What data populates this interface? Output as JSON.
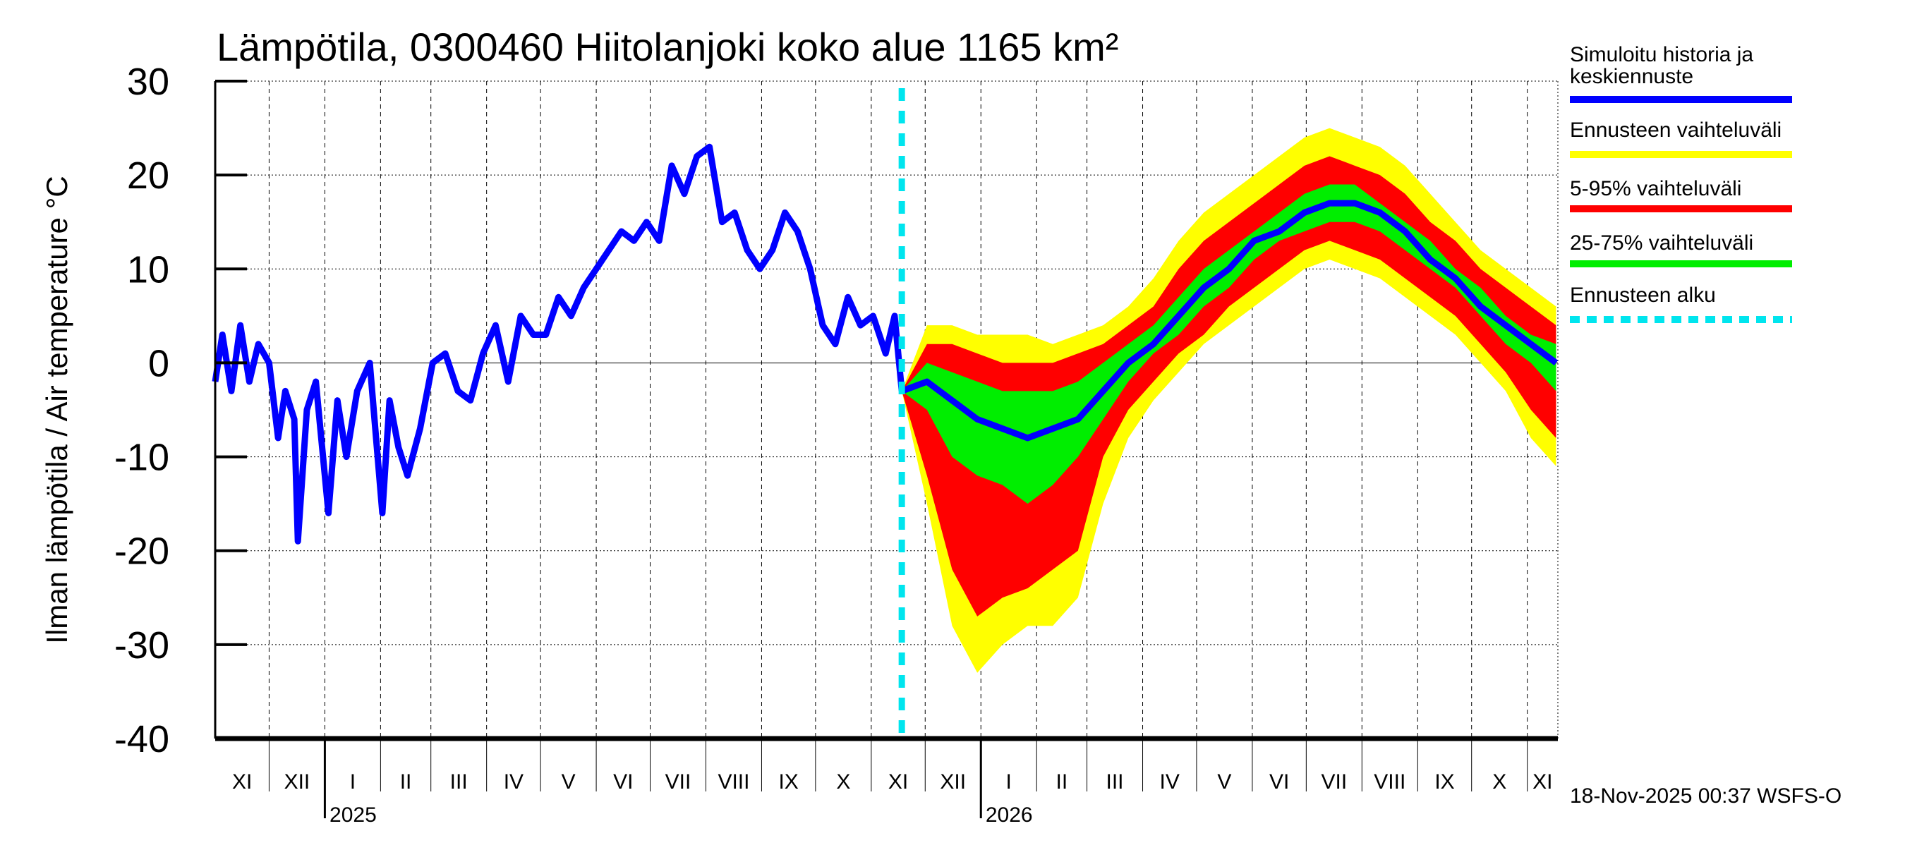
{
  "chart_data": {
    "type": "area",
    "title": "Lämpötila, 0300460 Hiitolanjoki koko alue 1165 km²",
    "ylabel": "Ilman lämpötila / Air temperature   °C",
    "xlabel": "",
    "ylim": [
      -40,
      30
    ],
    "yticks": [
      30,
      20,
      10,
      0,
      -10,
      -20,
      -30,
      -40
    ],
    "xlim": [
      "2024-11-01",
      "2026-11-18"
    ],
    "grid": true,
    "month_labels": [
      "XI",
      "XII",
      "I",
      "II",
      "III",
      "IV",
      "V",
      "VI",
      "VII",
      "VIII",
      "IX",
      "X",
      "XI",
      "XII",
      "I",
      "II",
      "III",
      "IV",
      "V",
      "VI",
      "VII",
      "VIII",
      "IX",
      "X",
      "XI"
    ],
    "year_labels": [
      {
        "year": "2025",
        "date": "2025-01-01"
      },
      {
        "year": "2026",
        "date": "2026-01-01"
      }
    ],
    "forecast_start": "2025-11-18",
    "timestamp": "18-Nov-2025 00:37 WSFS-O",
    "legend": {
      "placement": "right",
      "items": [
        {
          "label": "Simuloitu historia ja keskiennuste",
          "label_lines": [
            "Simuloitu historia ja",
            "keskiennuste"
          ],
          "color": "#0000ff",
          "style": "solid"
        },
        {
          "label": "Ennusteen vaihteluväli",
          "label_lines": [
            "Ennusteen vaihteluväli"
          ],
          "color": "#ffff00",
          "style": "solid"
        },
        {
          "label": "5-95% vaihteluväli",
          "label_lines": [
            "5-95% vaihteluväli"
          ],
          "color": "#ff0000",
          "style": "solid"
        },
        {
          "label": "25-75% vaihteluväli",
          "label_lines": [
            "25-75% vaihteluväli"
          ],
          "color": "#00ee00",
          "style": "solid"
        },
        {
          "label": "Ennusteen alku",
          "label_lines": [
            "Ennusteen alku"
          ],
          "color": "#00e5ee",
          "style": "dashed"
        }
      ]
    },
    "history": {
      "name": "Simuloitu historia",
      "x": [
        "2024-11-01",
        "2024-11-05",
        "2024-11-10",
        "2024-11-15",
        "2024-11-20",
        "2024-11-25",
        "2024-12-01",
        "2024-12-06",
        "2024-12-10",
        "2024-12-15",
        "2024-12-17",
        "2024-12-22",
        "2024-12-27",
        "2025-01-03",
        "2025-01-08",
        "2025-01-13",
        "2025-01-19",
        "2025-01-26",
        "2025-02-02",
        "2025-02-06",
        "2025-02-11",
        "2025-02-16",
        "2025-02-23",
        "2025-03-02",
        "2025-03-09",
        "2025-03-16",
        "2025-03-23",
        "2025-03-30",
        "2025-04-06",
        "2025-04-13",
        "2025-04-20",
        "2025-04-27",
        "2025-05-04",
        "2025-05-11",
        "2025-05-18",
        "2025-05-25",
        "2025-06-01",
        "2025-06-08",
        "2025-06-15",
        "2025-06-22",
        "2025-06-29",
        "2025-07-06",
        "2025-07-13",
        "2025-07-20",
        "2025-07-27",
        "2025-08-03",
        "2025-08-10",
        "2025-08-17",
        "2025-08-24",
        "2025-08-31",
        "2025-09-07",
        "2025-09-14",
        "2025-09-21",
        "2025-09-28",
        "2025-10-05",
        "2025-10-12",
        "2025-10-19",
        "2025-10-26",
        "2025-11-02",
        "2025-11-09",
        "2025-11-14",
        "2025-11-18"
      ],
      "y": [
        -2,
        3,
        -3,
        4,
        -2,
        2,
        0,
        -8,
        -3,
        -6,
        -19,
        -5,
        -2,
        -16,
        -4,
        -10,
        -3,
        0,
        -16,
        -4,
        -9,
        -12,
        -7,
        0,
        1,
        -3,
        -4,
        1,
        4,
        -2,
        5,
        3,
        3,
        7,
        5,
        8,
        10,
        12,
        14,
        13,
        15,
        13,
        21,
        18,
        22,
        23,
        15,
        16,
        12,
        10,
        12,
        16,
        14,
        10,
        4,
        2,
        7,
        4,
        5,
        1,
        5,
        -3
      ]
    },
    "forecast": {
      "x": [
        "2025-11-18",
        "2025-12-02",
        "2025-12-16",
        "2025-12-30",
        "2026-01-13",
        "2026-01-27",
        "2026-02-10",
        "2026-02-24",
        "2026-03-10",
        "2026-03-24",
        "2026-04-07",
        "2026-04-21",
        "2026-05-05",
        "2026-05-19",
        "2026-06-02",
        "2026-06-16",
        "2026-06-30",
        "2026-07-14",
        "2026-07-28",
        "2026-08-11",
        "2026-08-25",
        "2026-09-08",
        "2026-09-22",
        "2026-10-06",
        "2026-10-20",
        "2026-11-03",
        "2026-11-17"
      ],
      "min": [
        -3,
        -15,
        -28,
        -33,
        -30,
        -28,
        -28,
        -25,
        -15,
        -8,
        -4,
        -1,
        2,
        4,
        6,
        8,
        10,
        11,
        10,
        9,
        7,
        5,
        3,
        0,
        -3,
        -8,
        -11
      ],
      "p5": [
        -3,
        -12,
        -22,
        -27,
        -25,
        -24,
        -22,
        -20,
        -10,
        -5,
        -2,
        1,
        3,
        6,
        8,
        10,
        12,
        13,
        12,
        11,
        9,
        7,
        5,
        2,
        -1,
        -5,
        -8
      ],
      "p25": [
        -3,
        -5,
        -10,
        -12,
        -13,
        -15,
        -13,
        -10,
        -6,
        -2,
        1,
        3,
        6,
        8,
        11,
        13,
        14,
        15,
        15,
        14,
        12,
        10,
        8,
        5,
        2,
        0,
        -3
      ],
      "median": [
        -3,
        -2,
        -4,
        -6,
        -7,
        -8,
        -7,
        -6,
        -3,
        0,
        2,
        5,
        8,
        10,
        13,
        14,
        16,
        17,
        17,
        16,
        14,
        11,
        9,
        6,
        4,
        2,
        0
      ],
      "p75": [
        -3,
        0,
        -1,
        -2,
        -3,
        -3,
        -3,
        -2,
        0,
        2,
        4,
        7,
        10,
        12,
        14,
        16,
        18,
        19,
        19,
        17,
        15,
        13,
        10,
        8,
        5,
        3,
        2
      ],
      "p95": [
        -3,
        2,
        2,
        1,
        0,
        0,
        0,
        1,
        2,
        4,
        6,
        10,
        13,
        15,
        17,
        19,
        21,
        22,
        21,
        20,
        18,
        15,
        13,
        10,
        8,
        6,
        4
      ],
      "max": [
        -3,
        4,
        4,
        3,
        3,
        3,
        2,
        3,
        4,
        6,
        9,
        13,
        16,
        18,
        20,
        22,
        24,
        25,
        24,
        23,
        21,
        18,
        15,
        12,
        10,
        8,
        6
      ]
    }
  }
}
